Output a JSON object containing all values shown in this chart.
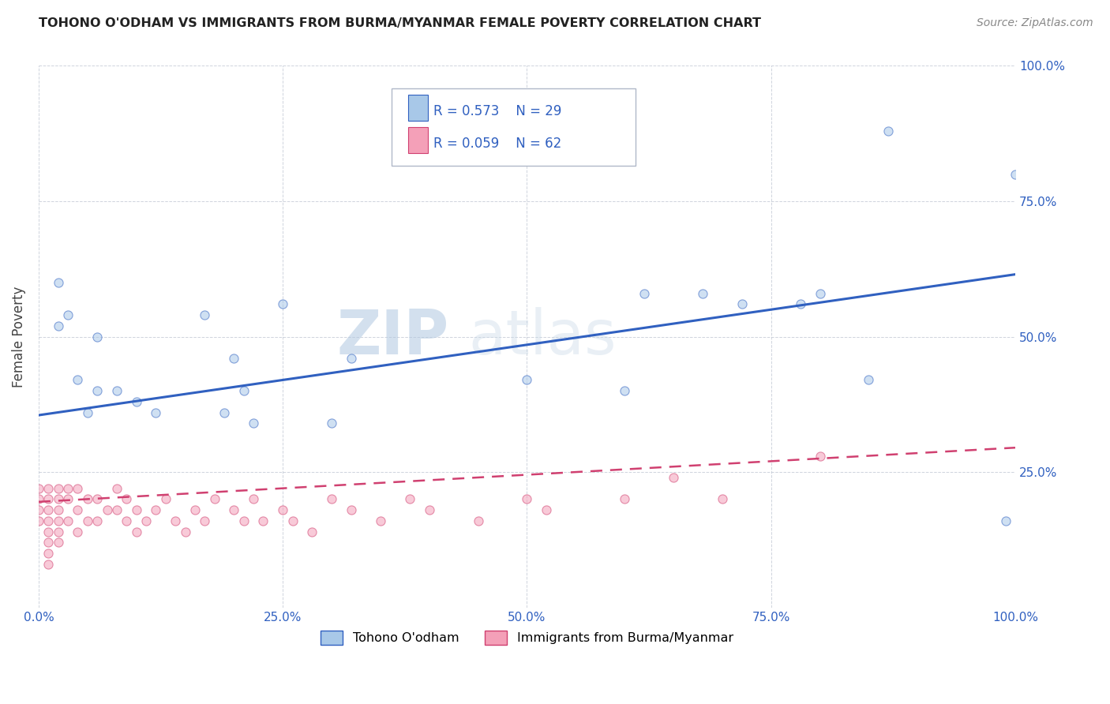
{
  "title": "TOHONO O'ODHAM VS IMMIGRANTS FROM BURMA/MYANMAR FEMALE POVERTY CORRELATION CHART",
  "source": "Source: ZipAtlas.com",
  "ylabel": "Female Poverty",
  "xlabel": "",
  "watermark_zip": "ZIP",
  "watermark_atlas": "atlas",
  "legend_R1": "0.573",
  "legend_N1": "29",
  "legend_R2": "0.059",
  "legend_N2": "62",
  "series1_label": "Tohono O'odham",
  "series2_label": "Immigrants from Burma/Myanmar",
  "color1": "#a8c8e8",
  "color2": "#f4a0b8",
  "trendline1_color": "#3060c0",
  "trendline2_color": "#d04070",
  "background_color": "#ffffff",
  "grid_color": "#b0b8c8",
  "xlim": [
    0.0,
    1.0
  ],
  "ylim": [
    0.0,
    1.0
  ],
  "xticks": [
    0.0,
    0.25,
    0.5,
    0.75,
    1.0
  ],
  "yticks": [
    0.25,
    0.5,
    0.75,
    1.0
  ],
  "xticklabels": [
    "0.0%",
    "25.0%",
    "50.0%",
    "75.0%",
    "100.0%"
  ],
  "yticklabels": [
    "25.0%",
    "50.0%",
    "75.0%",
    "100.0%"
  ],
  "tohono_x": [
    0.02,
    0.02,
    0.03,
    0.04,
    0.05,
    0.06,
    0.06,
    0.08,
    0.1,
    0.12,
    0.17,
    0.19,
    0.2,
    0.21,
    0.22,
    0.25,
    0.3,
    0.32,
    0.6,
    0.62,
    0.68,
    0.72,
    0.78,
    0.8,
    0.85,
    0.87,
    0.99,
    1.0,
    0.5
  ],
  "tohono_y": [
    0.6,
    0.52,
    0.54,
    0.42,
    0.36,
    0.4,
    0.5,
    0.4,
    0.38,
    0.36,
    0.54,
    0.36,
    0.46,
    0.4,
    0.34,
    0.56,
    0.34,
    0.46,
    0.4,
    0.58,
    0.58,
    0.56,
    0.56,
    0.58,
    0.42,
    0.88,
    0.16,
    0.8,
    0.42
  ],
  "burma_x": [
    0.0,
    0.0,
    0.0,
    0.0,
    0.01,
    0.01,
    0.01,
    0.01,
    0.01,
    0.01,
    0.01,
    0.01,
    0.02,
    0.02,
    0.02,
    0.02,
    0.02,
    0.02,
    0.03,
    0.03,
    0.03,
    0.04,
    0.04,
    0.04,
    0.05,
    0.05,
    0.06,
    0.06,
    0.07,
    0.08,
    0.08,
    0.09,
    0.09,
    0.1,
    0.1,
    0.11,
    0.12,
    0.13,
    0.14,
    0.15,
    0.16,
    0.17,
    0.18,
    0.2,
    0.21,
    0.22,
    0.23,
    0.25,
    0.26,
    0.28,
    0.3,
    0.32,
    0.35,
    0.38,
    0.4,
    0.45,
    0.5,
    0.52,
    0.6,
    0.65,
    0.7,
    0.8
  ],
  "burma_y": [
    0.22,
    0.2,
    0.18,
    0.16,
    0.22,
    0.2,
    0.18,
    0.16,
    0.14,
    0.12,
    0.1,
    0.08,
    0.22,
    0.2,
    0.18,
    0.16,
    0.14,
    0.12,
    0.22,
    0.2,
    0.16,
    0.22,
    0.18,
    0.14,
    0.2,
    0.16,
    0.2,
    0.16,
    0.18,
    0.22,
    0.18,
    0.2,
    0.16,
    0.18,
    0.14,
    0.16,
    0.18,
    0.2,
    0.16,
    0.14,
    0.18,
    0.16,
    0.2,
    0.18,
    0.16,
    0.2,
    0.16,
    0.18,
    0.16,
    0.14,
    0.2,
    0.18,
    0.16,
    0.2,
    0.18,
    0.16,
    0.2,
    0.18,
    0.2,
    0.24,
    0.2,
    0.28
  ],
  "marker_size": 65,
  "marker_alpha": 0.55,
  "marker_lw": 0.8,
  "trendline1_start_y": 0.355,
  "trendline1_end_y": 0.615,
  "trendline2_start_y": 0.195,
  "trendline2_end_y": 0.295,
  "legend_color": "#3060c0"
}
